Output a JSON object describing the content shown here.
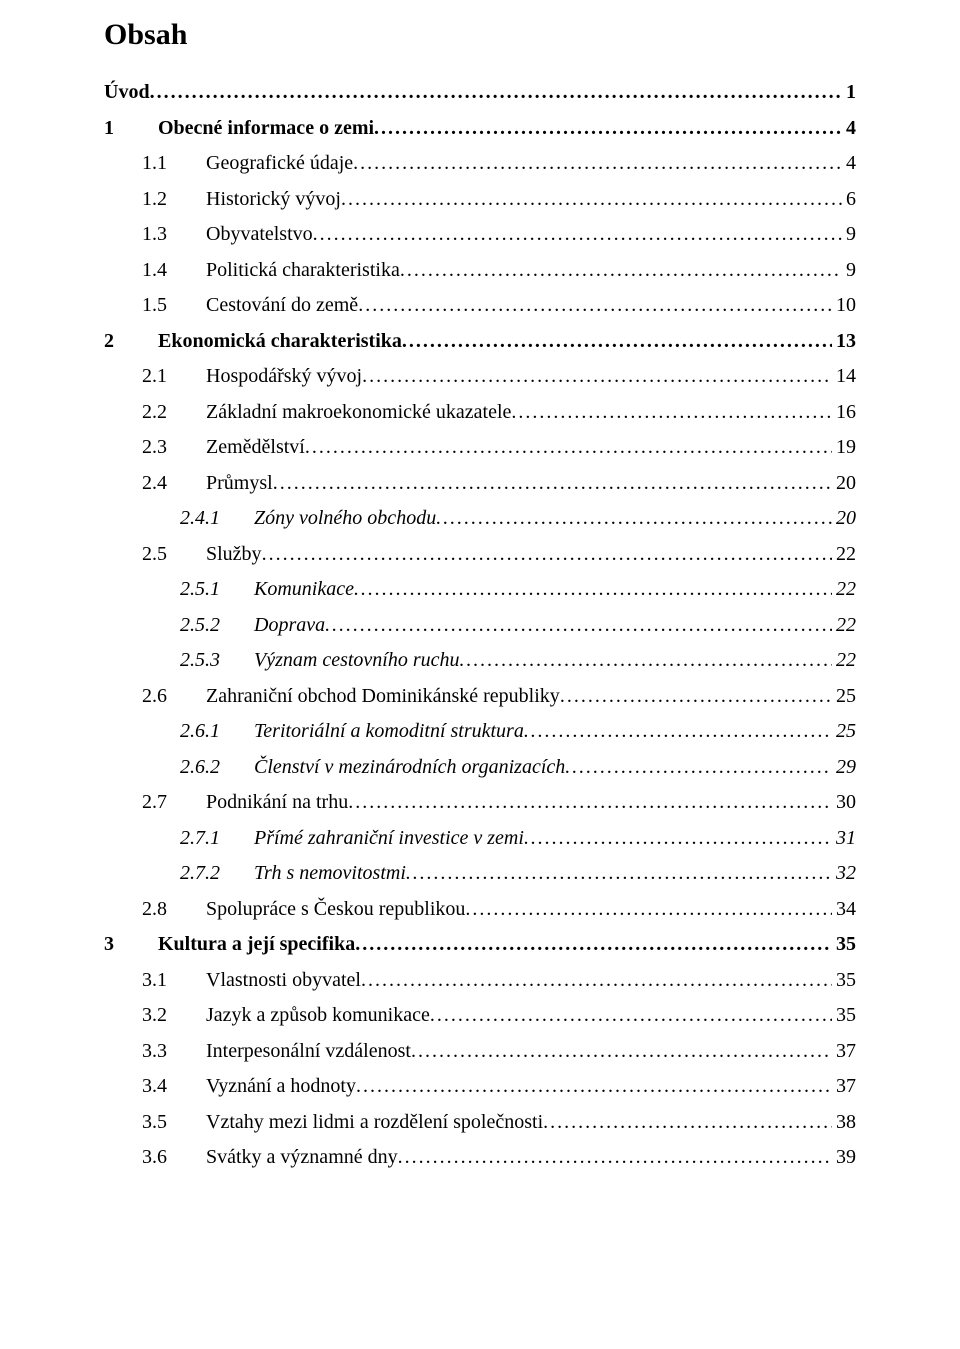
{
  "title": "Obsah",
  "entries": [
    {
      "num": "",
      "label": "Úvod",
      "page": "1",
      "level": 1,
      "bold": true,
      "italic": false
    },
    {
      "num": "1",
      "label": "Obecné informace o zemi",
      "page": "4",
      "level": 1,
      "bold": true,
      "italic": false
    },
    {
      "num": "1.1",
      "label": "Geografické údaje",
      "page": "4",
      "level": 2,
      "bold": false,
      "italic": false
    },
    {
      "num": "1.2",
      "label": "Historický vývoj",
      "page": "6",
      "level": 2,
      "bold": false,
      "italic": false
    },
    {
      "num": "1.3",
      "label": "Obyvatelstvo",
      "page": "9",
      "level": 2,
      "bold": false,
      "italic": false
    },
    {
      "num": "1.4",
      "label": "Politická charakteristika",
      "page": "9",
      "level": 2,
      "bold": false,
      "italic": false
    },
    {
      "num": "1.5",
      "label": "Cestování do země",
      "page": "10",
      "level": 2,
      "bold": false,
      "italic": false
    },
    {
      "num": "2",
      "label": "Ekonomická charakteristika",
      "page": "13",
      "level": 1,
      "bold": true,
      "italic": false
    },
    {
      "num": "2.1",
      "label": "Hospodářský vývoj",
      "page": "14",
      "level": 2,
      "bold": false,
      "italic": false
    },
    {
      "num": "2.2",
      "label": "Základní makroekonomické ukazatele",
      "page": "16",
      "level": 2,
      "bold": false,
      "italic": false
    },
    {
      "num": "2.3",
      "label": "Zemědělství",
      "page": "19",
      "level": 2,
      "bold": false,
      "italic": false
    },
    {
      "num": "2.4",
      "label": "Průmysl",
      "page": "20",
      "level": 2,
      "bold": false,
      "italic": false
    },
    {
      "num": "2.4.1",
      "label": "Zóny volného obchodu",
      "page": "20",
      "level": 3,
      "bold": false,
      "italic": true
    },
    {
      "num": "2.5",
      "label": "Služby",
      "page": "22",
      "level": 2,
      "bold": false,
      "italic": false
    },
    {
      "num": "2.5.1",
      "label": "Komunikace",
      "page": "22",
      "level": 3,
      "bold": false,
      "italic": true
    },
    {
      "num": "2.5.2",
      "label": "Doprava",
      "page": "22",
      "level": 3,
      "bold": false,
      "italic": true
    },
    {
      "num": "2.5.3",
      "label": "Význam cestovního ruchu",
      "page": "22",
      "level": 3,
      "bold": false,
      "italic": true
    },
    {
      "num": "2.6",
      "label": "Zahraniční obchod Dominikánské republiky",
      "page": "25",
      "level": 2,
      "bold": false,
      "italic": false
    },
    {
      "num": "2.6.1",
      "label": "Teritoriální a komoditní struktura",
      "page": "25",
      "level": 3,
      "bold": false,
      "italic": true
    },
    {
      "num": "2.6.2",
      "label": "Členství v mezinárodních organizacích",
      "page": "29",
      "level": 3,
      "bold": false,
      "italic": true
    },
    {
      "num": "2.7",
      "label": "Podnikání na trhu",
      "page": "30",
      "level": 2,
      "bold": false,
      "italic": false
    },
    {
      "num": "2.7.1",
      "label": "Přímé zahraniční investice v zemi",
      "page": "31",
      "level": 3,
      "bold": false,
      "italic": true
    },
    {
      "num": "2.7.2",
      "label": "Trh s nemovitostmi",
      "page": "32",
      "level": 3,
      "bold": false,
      "italic": true
    },
    {
      "num": "2.8",
      "label": "Spolupráce s Českou republikou",
      "page": "34",
      "level": 2,
      "bold": false,
      "italic": false
    },
    {
      "num": "3",
      "label": "Kultura a její specifika",
      "page": "35",
      "level": 1,
      "bold": true,
      "italic": false
    },
    {
      "num": "3.1",
      "label": "Vlastnosti obyvatel",
      "page": "35",
      "level": 2,
      "bold": false,
      "italic": false
    },
    {
      "num": "3.2",
      "label": "Jazyk a způsob komunikace",
      "page": "35",
      "level": 2,
      "bold": false,
      "italic": false
    },
    {
      "num": "3.3",
      "label": "Interpesonální vzdálenost",
      "page": "37",
      "level": 2,
      "bold": false,
      "italic": false
    },
    {
      "num": "3.4",
      "label": "Vyznání a hodnoty",
      "page": "37",
      "level": 2,
      "bold": false,
      "italic": false
    },
    {
      "num": "3.5",
      "label": "Vztahy mezi lidmi a rozdělení společnosti",
      "page": "38",
      "level": 2,
      "bold": false,
      "italic": false
    },
    {
      "num": "3.6",
      "label": "Svátky a významné dny",
      "page": "39",
      "level": 2,
      "bold": false,
      "italic": false
    }
  ]
}
